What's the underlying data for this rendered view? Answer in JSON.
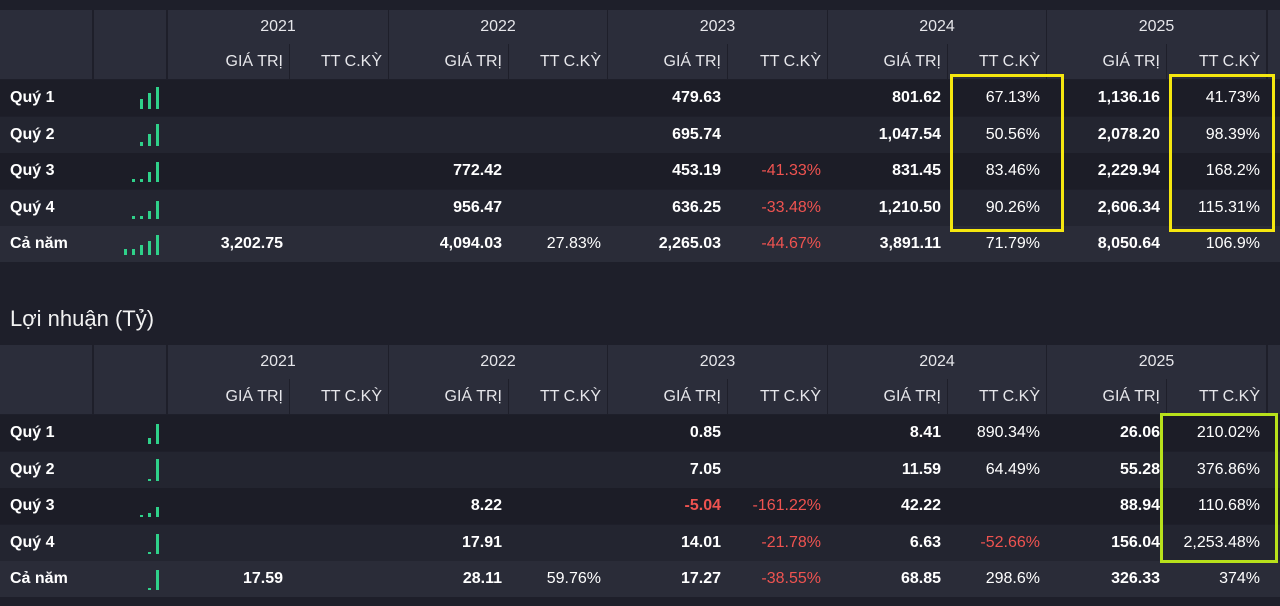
{
  "columns": {
    "years": [
      "2021",
      "2022",
      "2023",
      "2024",
      "2025"
    ],
    "value_label": "GIÁ TRỊ",
    "growth_label": "TT C.KỲ"
  },
  "revenue": {
    "rows": [
      {
        "label": "Quý 1",
        "cells": [
          [
            "",
            ""
          ],
          [
            "",
            ""
          ],
          [
            "479.63",
            ""
          ],
          [
            "801.62",
            "67.13%"
          ],
          [
            "1,136.16",
            "41.73%"
          ]
        ]
      },
      {
        "label": "Quý 2",
        "cells": [
          [
            "",
            ""
          ],
          [
            "",
            ""
          ],
          [
            "695.74",
            ""
          ],
          [
            "1,047.54",
            "50.56%"
          ],
          [
            "2,078.20",
            "98.39%"
          ]
        ]
      },
      {
        "label": "Quý 3",
        "cells": [
          [
            "",
            ""
          ],
          [
            "772.42",
            ""
          ],
          [
            "453.19",
            "-41.33%"
          ],
          [
            "831.45",
            "83.46%"
          ],
          [
            "2,229.94",
            "168.2%"
          ]
        ]
      },
      {
        "label": "Quý 4",
        "cells": [
          [
            "",
            ""
          ],
          [
            "956.47",
            ""
          ],
          [
            "636.25",
            "-33.48%"
          ],
          [
            "1,210.50",
            "90.26%"
          ],
          [
            "2,606.34",
            "115.31%"
          ]
        ]
      },
      {
        "label": "Cả năm",
        "cells": [
          [
            "3,202.75",
            ""
          ],
          [
            "4,094.03",
            "27.83%"
          ],
          [
            "2,265.03",
            "-44.67%"
          ],
          [
            "3,891.11",
            "71.79%"
          ],
          [
            "8,050.64",
            "106.9%"
          ]
        ]
      }
    ]
  },
  "profit": {
    "title": "Lợi nhuận (Tỷ)",
    "rows": [
      {
        "label": "Quý 1",
        "cells": [
          [
            "",
            ""
          ],
          [
            "",
            ""
          ],
          [
            "0.85",
            ""
          ],
          [
            "8.41",
            "890.34%"
          ],
          [
            "26.06",
            "210.02%"
          ]
        ]
      },
      {
        "label": "Quý 2",
        "cells": [
          [
            "",
            ""
          ],
          [
            "",
            ""
          ],
          [
            "7.05",
            ""
          ],
          [
            "11.59",
            "64.49%"
          ],
          [
            "55.28",
            "376.86%"
          ]
        ]
      },
      {
        "label": "Quý 3",
        "cells": [
          [
            "",
            ""
          ],
          [
            "8.22",
            ""
          ],
          [
            "-5.04",
            "-161.22%"
          ],
          [
            "42.22",
            ""
          ],
          [
            "88.94",
            "110.68%"
          ]
        ]
      },
      {
        "label": "Quý 4",
        "cells": [
          [
            "",
            ""
          ],
          [
            "17.91",
            ""
          ],
          [
            "14.01",
            "-21.78%"
          ],
          [
            "6.63",
            "-52.66%"
          ],
          [
            "156.04",
            "2,253.48%"
          ]
        ]
      },
      {
        "label": "Cả năm",
        "cells": [
          [
            "17.59",
            ""
          ],
          [
            "28.11",
            "59.76%"
          ],
          [
            "17.27",
            "-38.55%"
          ],
          [
            "68.85",
            "298.6%"
          ],
          [
            "326.33",
            "374%"
          ]
        ]
      }
    ]
  },
  "colors": {
    "positive_bar": "#2fd18a",
    "negative_text": "#ef5350",
    "highlight_yellow": "#f5e70f",
    "highlight_green": "#b8e11b"
  }
}
